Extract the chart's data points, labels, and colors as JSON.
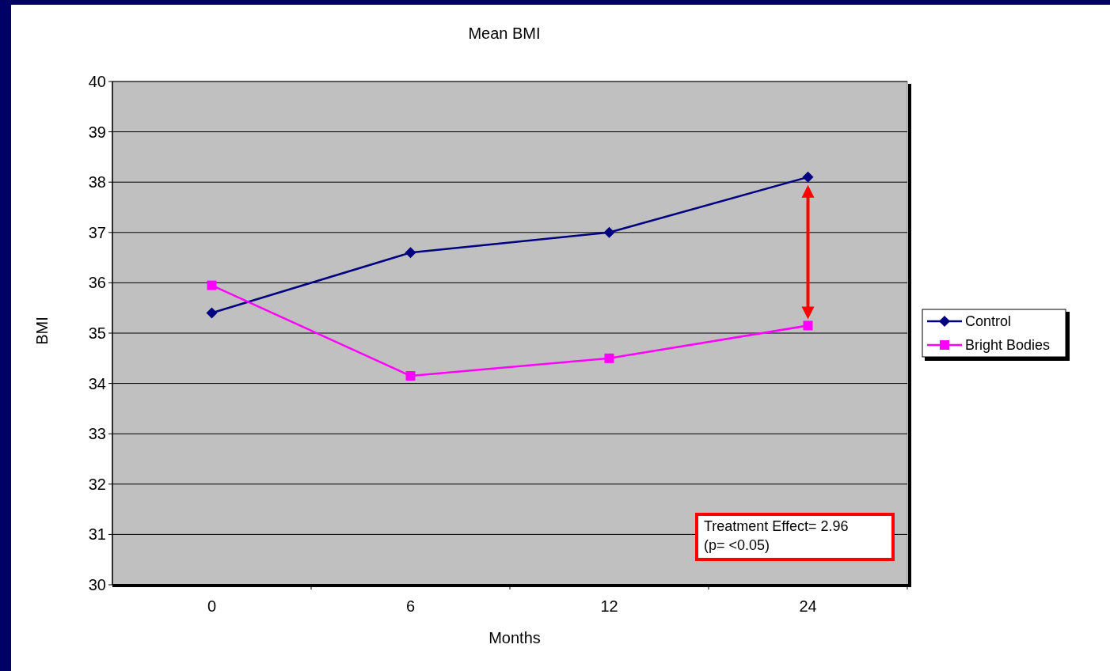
{
  "chart_data": {
    "type": "line",
    "title": "Mean BMI",
    "xlabel": "Months",
    "ylabel": "BMI",
    "categories": [
      "0",
      "6",
      "12",
      "24"
    ],
    "series": [
      {
        "name": "Control",
        "color": "#000080",
        "values": [
          35.4,
          36.6,
          37.0,
          38.1
        ],
        "marker": "diamond"
      },
      {
        "name": "Bright Bodies",
        "color": "#ff00ff",
        "values": [
          35.95,
          34.15,
          34.5,
          35.15
        ],
        "marker": "square"
      }
    ],
    "ylim": [
      30,
      40
    ],
    "yticks": [
      30,
      31,
      32,
      33,
      34,
      35,
      36,
      37,
      38,
      39,
      40
    ],
    "grid": "y",
    "legend": "right",
    "annotations": [
      "Treatment Effect= 2.96",
      "(p= <0.05)"
    ]
  }
}
